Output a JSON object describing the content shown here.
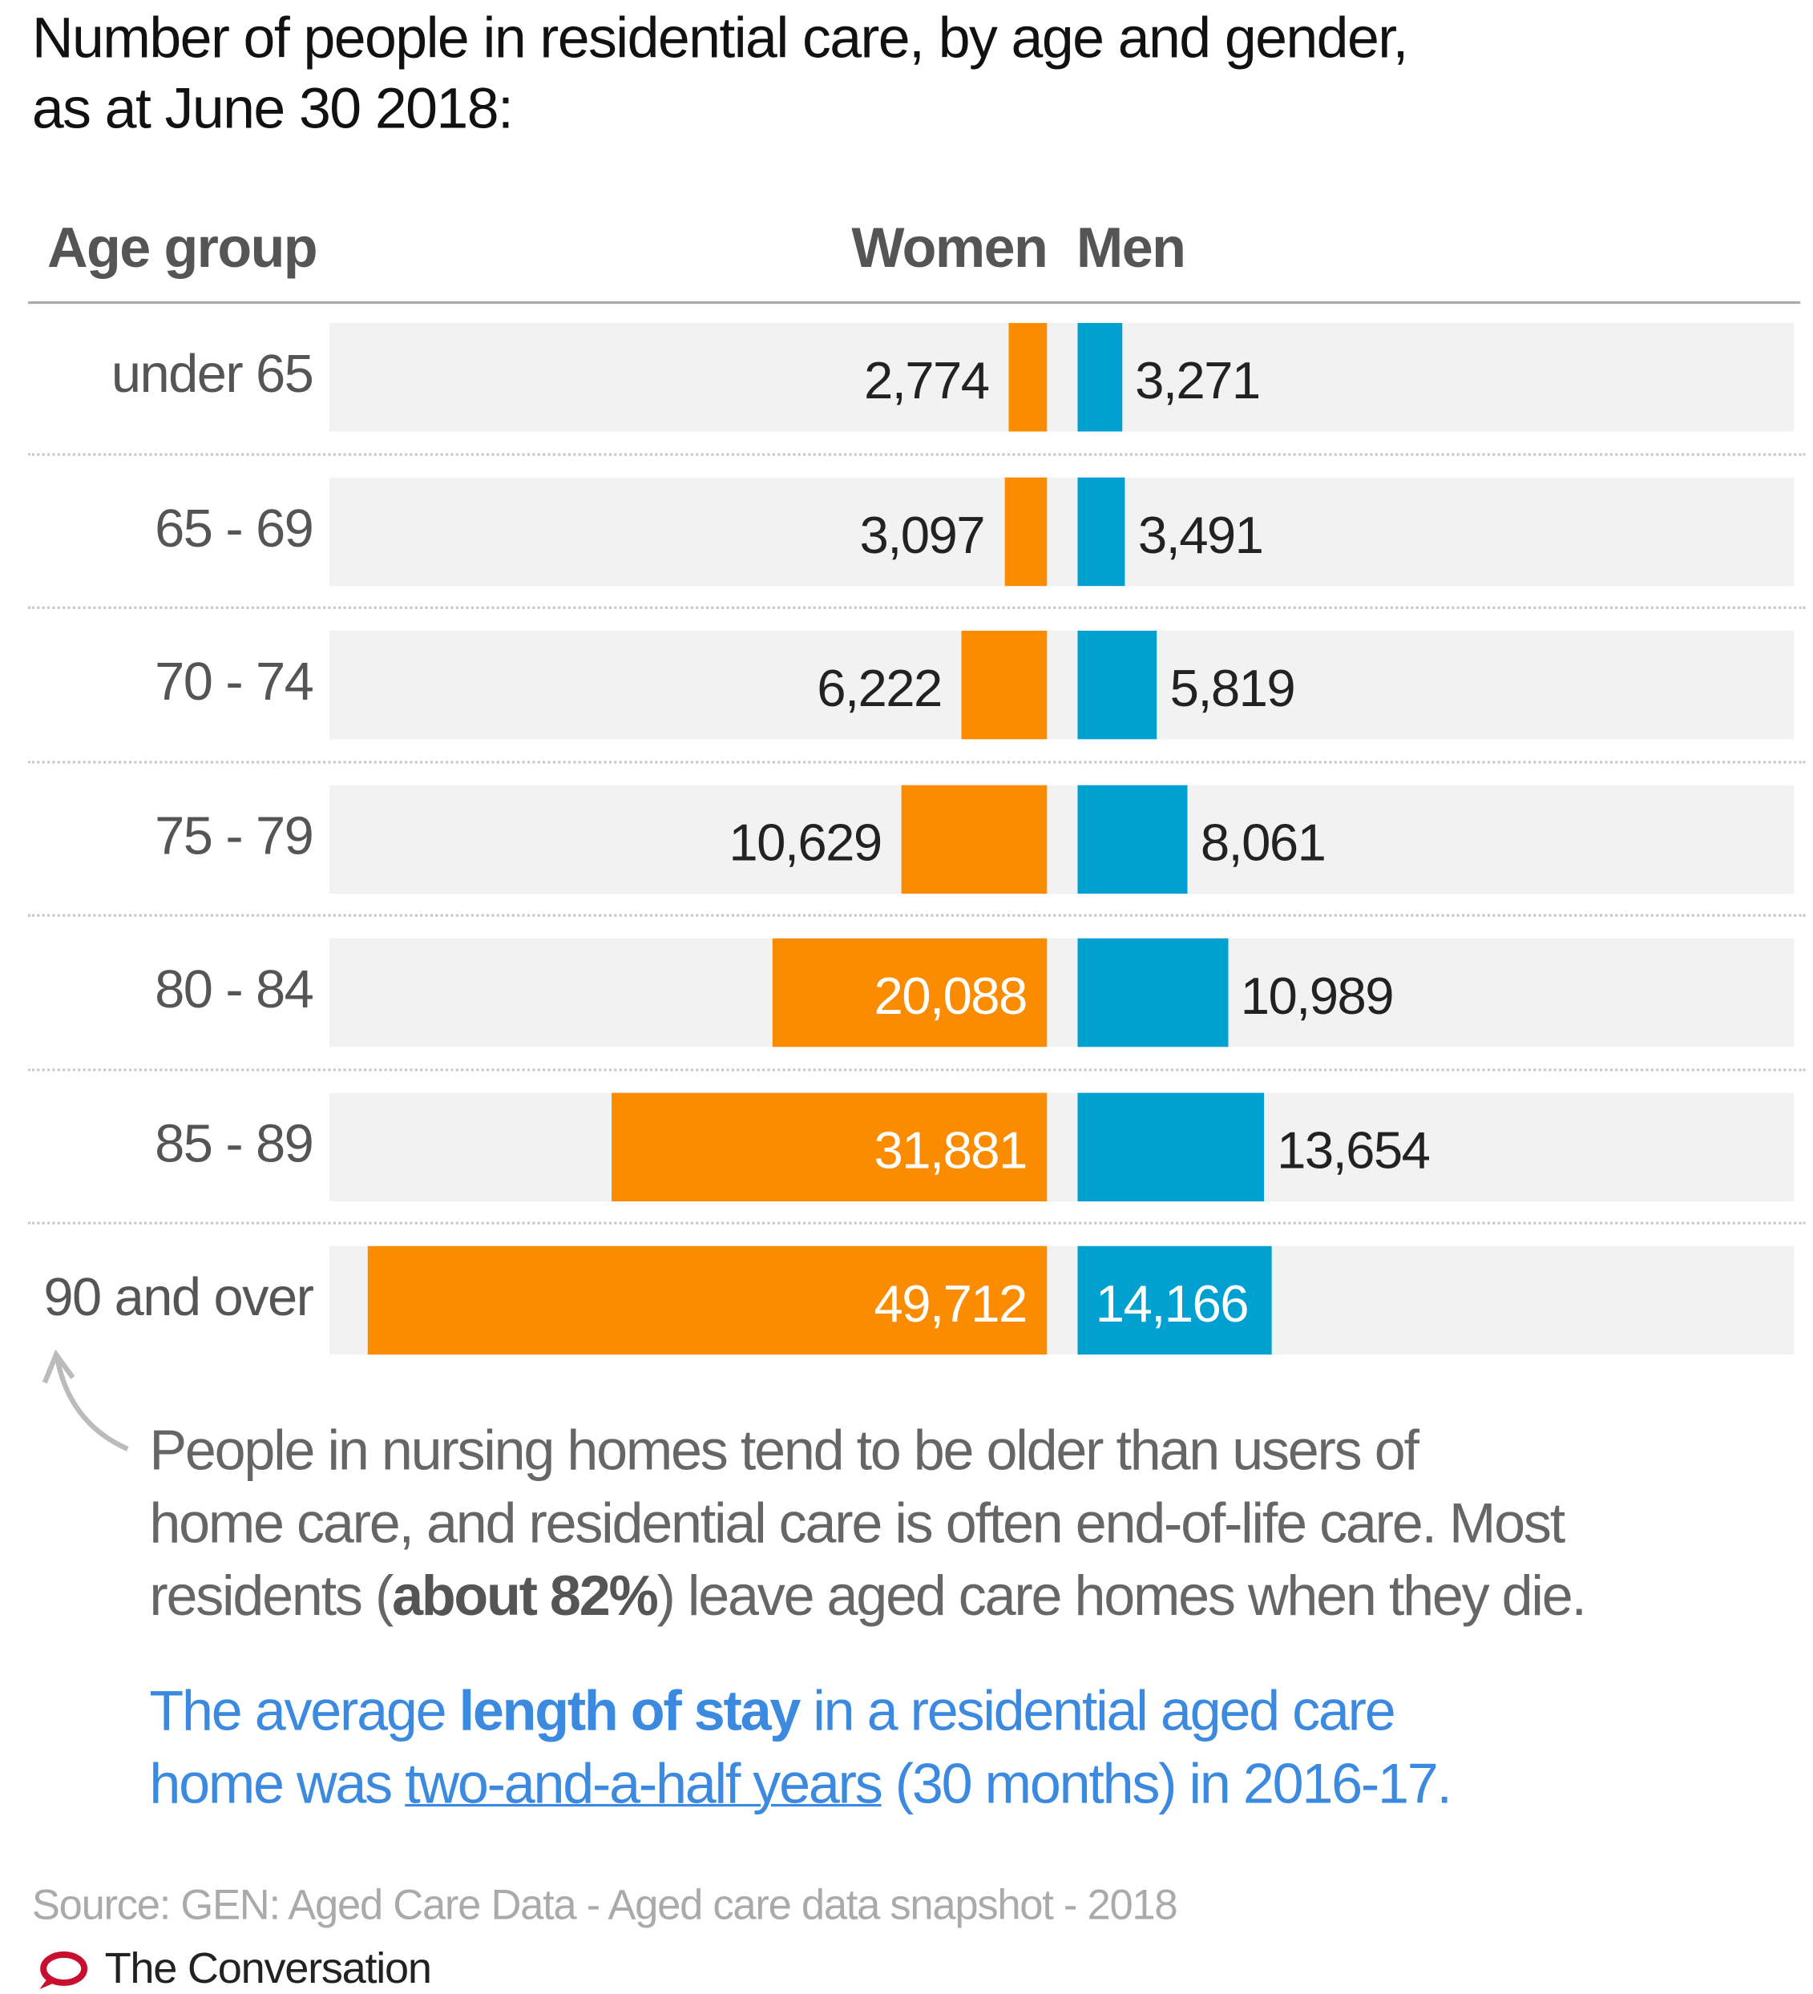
{
  "title_lines": [
    "Number of people in residential care, by age and gender,",
    "as at June 30 2018:"
  ],
  "chart_data": {
    "type": "bar",
    "orientation": "horizontal-back-to-back",
    "title": "Number of people in residential care, by age and gender, as at June 30 2018:",
    "category_header": "Age group",
    "categories": [
      "under 65",
      "65 - 69",
      "70 - 74",
      "75 - 79",
      "80 - 84",
      "85 - 89",
      "90 and over"
    ],
    "series": [
      {
        "name": "Women",
        "color": "#fb8c00",
        "values": [
          2774,
          3097,
          6222,
          10629,
          20088,
          31881,
          49712
        ],
        "labels": [
          "2,774",
          "3,097",
          "6,222",
          "10,629",
          "20,088",
          "31,881",
          "49,712"
        ]
      },
      {
        "name": "Men",
        "color": "#00a1d0",
        "values": [
          3271,
          3491,
          5819,
          8061,
          10989,
          13654,
          14166
        ],
        "labels": [
          "3,271",
          "3,491",
          "5,819",
          "8,061",
          "10,989",
          "13,654",
          "14,166"
        ]
      }
    ],
    "grid": false,
    "legend": "column headers"
  },
  "annotation": {
    "p1_a": "People in nursing homes tend to be older than users of",
    "p1_b": "home care, and residential care is often end-of-life care. Most",
    "p1_c_pre": "residents (",
    "p1_c_bold": "about 82%",
    "p1_c_post": ") leave aged care homes when they die.",
    "p2_a_pre": "The average ",
    "p2_a_bold": "length of stay",
    "p2_a_post": " in a residential aged care",
    "p2_b_pre": "home was ",
    "p2_b_link": "two-and-a-half years",
    "p2_b_post": " (30 months) in 2016-17."
  },
  "source": "Source: GEN: Aged Care Data - Aged care data snapshot - 2018",
  "brand": "The Conversation",
  "colors": {
    "women": "#fb8c00",
    "men": "#00a1d0",
    "link_text": "#3b8ae0",
    "brand_logo": "#c8102e"
  }
}
